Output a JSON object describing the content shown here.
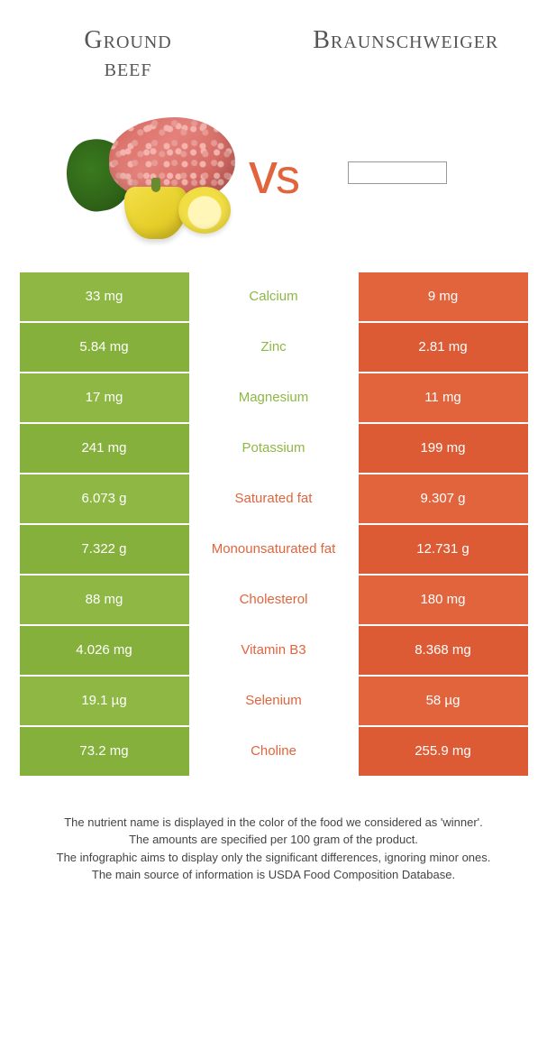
{
  "colors": {
    "left": "#8eb843",
    "left_alt": "#85b03b",
    "right": "#e2643c",
    "right_alt": "#dc5a34",
    "vs": "#e2643c",
    "title": "#555555",
    "note_text": "#444444"
  },
  "header": {
    "left_title_l1": "Ground",
    "left_title_l2": "beef",
    "right_title": "Braunschweiger",
    "vs_text": "vs"
  },
  "table": {
    "rows": [
      {
        "left": "33 mg",
        "label": "Calcium",
        "right": "9 mg",
        "winner": "left"
      },
      {
        "left": "5.84 mg",
        "label": "Zinc",
        "right": "2.81 mg",
        "winner": "left"
      },
      {
        "left": "17 mg",
        "label": "Magnesium",
        "right": "11 mg",
        "winner": "left"
      },
      {
        "left": "241 mg",
        "label": "Potassium",
        "right": "199 mg",
        "winner": "left"
      },
      {
        "left": "6.073 g",
        "label": "Saturated fat",
        "right": "9.307 g",
        "winner": "right"
      },
      {
        "left": "7.322 g",
        "label": "Monounsaturated fat",
        "right": "12.731 g",
        "winner": "right"
      },
      {
        "left": "88 mg",
        "label": "Cholesterol",
        "right": "180 mg",
        "winner": "right"
      },
      {
        "left": "4.026 mg",
        "label": "Vitamin B3",
        "right": "8.368 mg",
        "winner": "right"
      },
      {
        "left": "19.1 µg",
        "label": "Selenium",
        "right": "58 µg",
        "winner": "right"
      },
      {
        "left": "73.2 mg",
        "label": "Choline",
        "right": "255.9 mg",
        "winner": "right"
      }
    ]
  },
  "notes": {
    "l1": "The nutrient name is displayed in the color of the food we considered as 'winner'.",
    "l2": "The amounts are specified per 100 gram of the product.",
    "l3": "The infographic aims to display only the significant differences, ignoring minor ones.",
    "l4": "The main source of information is USDA Food Composition Database."
  }
}
